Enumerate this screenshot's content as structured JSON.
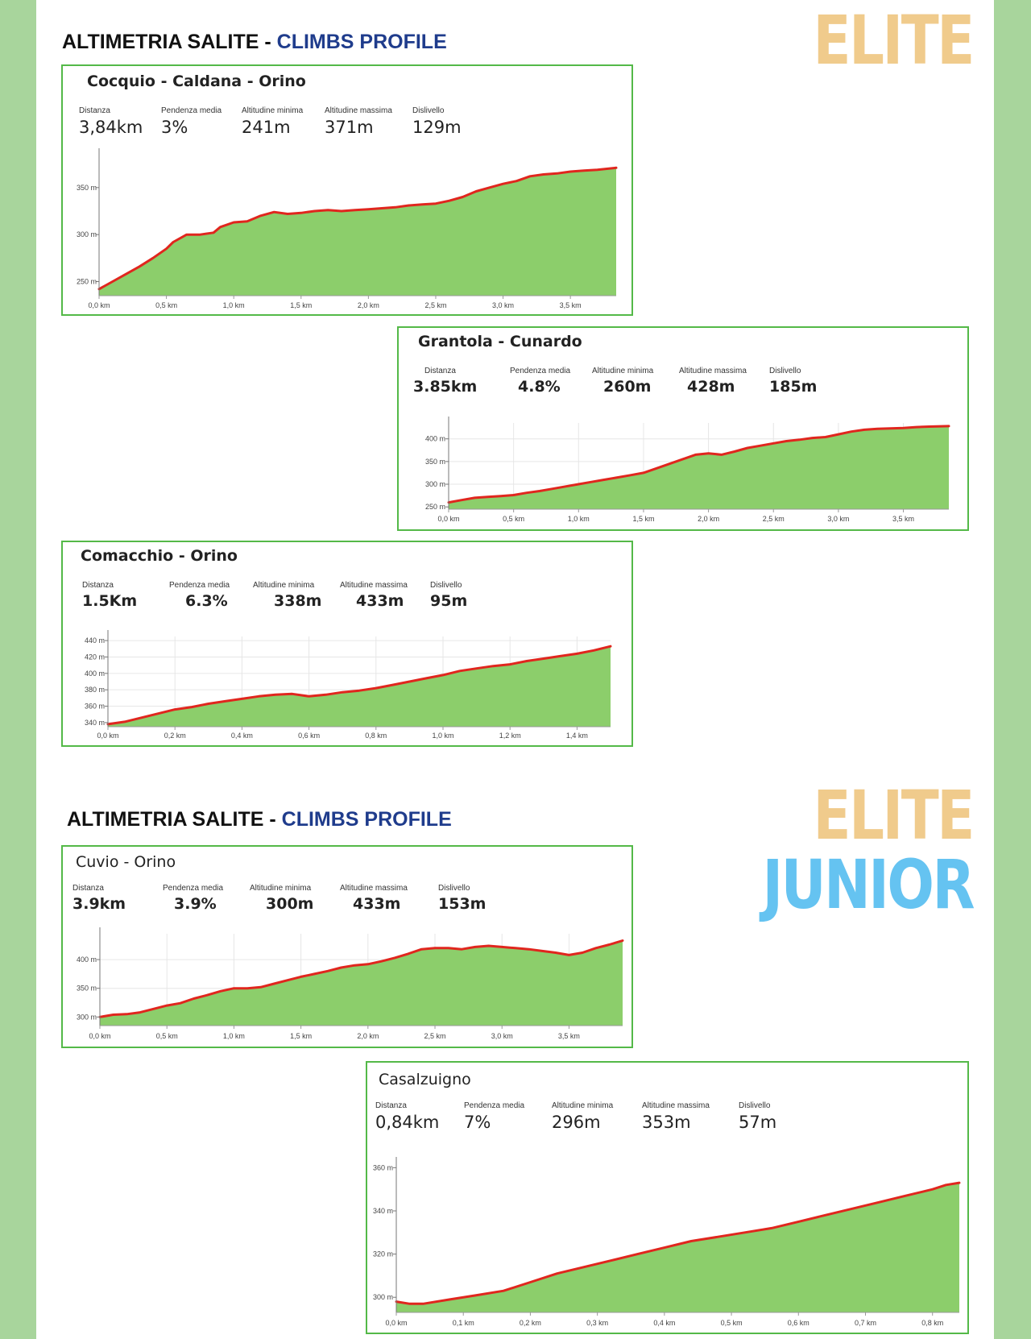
{
  "page": {
    "sections": [
      {
        "heading_main": "ALTIMETRIA SALITE - ",
        "heading_accent": "CLIMBS PROFILE",
        "badges": [
          "ELITE"
        ]
      },
      {
        "heading_main": "ALTIMETRIA SALITE - ",
        "heading_accent": "CLIMBS PROFILE",
        "badges": [
          "ELITE",
          "JUNIOR"
        ]
      }
    ],
    "colors": {
      "panel_border": "#54b948",
      "fill": "#8cce6b",
      "line": "#e0261e",
      "accent_text": "#1f3c8c",
      "elite": "#f0cb8c",
      "junior": "#65c3f1",
      "side_strip": "#a8d59c"
    }
  },
  "chart_data": [
    {
      "type": "area",
      "title": "Cocquio - Caldana - Orino",
      "stats": [
        {
          "label": "Distanza",
          "value": "3,84km"
        },
        {
          "label": "Pendenza media",
          "value": "3%"
        },
        {
          "label": "Altitudine minima",
          "value": "241m"
        },
        {
          "label": "Altitudine massima",
          "value": "371m"
        },
        {
          "label": "Dislivello",
          "value": "129m"
        }
      ],
      "xlim": [
        0,
        3.84
      ],
      "ylim": [
        235,
        385
      ],
      "x_ticks": [
        0,
        0.5,
        1.0,
        1.5,
        2.0,
        2.5,
        3.0,
        3.5
      ],
      "x_tick_labels": [
        "0,0 km",
        "0,5 km",
        "1,0 km",
        "1,5 km",
        "2,0 km",
        "2,5 km",
        "3,0 km",
        "3,5 km"
      ],
      "y_ticks": [
        250,
        300,
        350
      ],
      "y_tick_labels": [
        "250 m",
        "300 m",
        "350 m"
      ],
      "grid": false,
      "x": [
        0,
        0.1,
        0.2,
        0.3,
        0.4,
        0.5,
        0.55,
        0.65,
        0.75,
        0.85,
        0.9,
        1.0,
        1.1,
        1.2,
        1.3,
        1.4,
        1.5,
        1.6,
        1.7,
        1.8,
        1.9,
        2.0,
        2.1,
        2.2,
        2.3,
        2.4,
        2.5,
        2.6,
        2.7,
        2.8,
        2.9,
        3.0,
        3.1,
        3.2,
        3.3,
        3.4,
        3.5,
        3.6,
        3.7,
        3.84
      ],
      "y": [
        242,
        250,
        258,
        266,
        275,
        285,
        292,
        300,
        300,
        302,
        308,
        313,
        314,
        320,
        324,
        322,
        323,
        325,
        326,
        325,
        326,
        327,
        328,
        329,
        331,
        332,
        333,
        336,
        340,
        346,
        350,
        354,
        357,
        362,
        364,
        365,
        367,
        368,
        369,
        371
      ]
    },
    {
      "type": "area",
      "title": "Grantola - Cunardo",
      "stats": [
        {
          "label": "Distanza",
          "value": "3.85km"
        },
        {
          "label": "Pendenza media",
          "value": "4.8%"
        },
        {
          "label": "Altitudine minima",
          "value": "260m"
        },
        {
          "label": "Altitudine massima",
          "value": "428m"
        },
        {
          "label": "Dislivello",
          "value": "185m"
        }
      ],
      "xlim": [
        0,
        3.85
      ],
      "ylim": [
        245,
        435
      ],
      "x_ticks": [
        0,
        0.5,
        1.0,
        1.5,
        2.0,
        2.5,
        3.0,
        3.5
      ],
      "x_tick_labels": [
        "0,0 km",
        "0,5 km",
        "1,0 km",
        "1,5 km",
        "2,0 km",
        "2,5 km",
        "3,0 km",
        "3,5 km"
      ],
      "y_ticks": [
        250,
        300,
        350,
        400
      ],
      "y_tick_labels": [
        "250 m",
        "300 m",
        "350 m",
        "400 m"
      ],
      "grid": true,
      "x": [
        0,
        0.1,
        0.2,
        0.3,
        0.4,
        0.5,
        0.6,
        0.7,
        0.8,
        0.9,
        1.0,
        1.1,
        1.2,
        1.3,
        1.4,
        1.5,
        1.6,
        1.7,
        1.8,
        1.9,
        2.0,
        2.1,
        2.2,
        2.3,
        2.4,
        2.5,
        2.6,
        2.7,
        2.8,
        2.9,
        3.0,
        3.1,
        3.2,
        3.3,
        3.4,
        3.5,
        3.6,
        3.7,
        3.85
      ],
      "y": [
        260,
        265,
        270,
        272,
        274,
        276,
        281,
        285,
        290,
        295,
        300,
        305,
        310,
        315,
        320,
        325,
        335,
        345,
        355,
        365,
        368,
        365,
        372,
        380,
        385,
        390,
        395,
        398,
        402,
        404,
        410,
        416,
        420,
        422,
        423,
        424,
        426,
        427,
        428
      ]
    },
    {
      "type": "area",
      "title": "Comacchio - Orino",
      "stats": [
        {
          "label": "Distanza",
          "value": "1.5Km"
        },
        {
          "label": "Pendenza media",
          "value": "6.3%"
        },
        {
          "label": "Altitudine minima",
          "value": "338m"
        },
        {
          "label": "Altitudine massima",
          "value": "433m"
        },
        {
          "label": "Dislivello",
          "value": "95m"
        }
      ],
      "xlim": [
        0,
        1.5
      ],
      "ylim": [
        335,
        445
      ],
      "x_ticks": [
        0,
        0.2,
        0.4,
        0.6,
        0.8,
        1.0,
        1.2,
        1.4
      ],
      "x_tick_labels": [
        "0,0 km",
        "0,2 km",
        "0,4 km",
        "0,6 km",
        "0,8 km",
        "1,0 km",
        "1,2 km",
        "1,4 km"
      ],
      "y_ticks": [
        340,
        360,
        380,
        400,
        420,
        440
      ],
      "y_tick_labels": [
        "340 m",
        "360 m",
        "380 m",
        "400 m",
        "420 m",
        "440 m"
      ],
      "grid": true,
      "x": [
        0,
        0.05,
        0.1,
        0.15,
        0.2,
        0.25,
        0.3,
        0.35,
        0.4,
        0.45,
        0.5,
        0.55,
        0.6,
        0.65,
        0.7,
        0.75,
        0.8,
        0.85,
        0.9,
        0.95,
        1.0,
        1.05,
        1.1,
        1.15,
        1.2,
        1.25,
        1.3,
        1.35,
        1.4,
        1.45,
        1.5
      ],
      "y": [
        338,
        341,
        346,
        351,
        356,
        359,
        363,
        366,
        369,
        372,
        374,
        375,
        372,
        374,
        377,
        379,
        382,
        386,
        390,
        394,
        398,
        403,
        406,
        409,
        411,
        415,
        418,
        421,
        424,
        428,
        433
      ]
    },
    {
      "type": "area",
      "title": "Cuvio - Orino",
      "stats": [
        {
          "label": "Distanza",
          "value": "3.9km"
        },
        {
          "label": "Pendenza media",
          "value": "3.9%"
        },
        {
          "label": "Altitudine minima",
          "value": "300m"
        },
        {
          "label": "Altitudine massima",
          "value": "433m"
        },
        {
          "label": "Dislivello",
          "value": "153m"
        }
      ],
      "xlim": [
        0,
        3.9
      ],
      "ylim": [
        285,
        445
      ],
      "x_ticks": [
        0,
        0.5,
        1.0,
        1.5,
        2.0,
        2.5,
        3.0,
        3.5
      ],
      "x_tick_labels": [
        "0,0 km",
        "0,5 km",
        "1,0 km",
        "1,5 km",
        "2,0 km",
        "2,5 km",
        "3,0 km",
        "3,5 km"
      ],
      "y_ticks": [
        300,
        350,
        400
      ],
      "y_tick_labels": [
        "300 m",
        "350 m",
        "400 m"
      ],
      "grid": true,
      "x": [
        0,
        0.1,
        0.2,
        0.3,
        0.4,
        0.5,
        0.6,
        0.7,
        0.8,
        0.9,
        1.0,
        1.1,
        1.2,
        1.3,
        1.4,
        1.5,
        1.6,
        1.7,
        1.8,
        1.9,
        2.0,
        2.1,
        2.2,
        2.3,
        2.4,
        2.5,
        2.6,
        2.7,
        2.8,
        2.9,
        3.0,
        3.1,
        3.2,
        3.3,
        3.4,
        3.5,
        3.6,
        3.7,
        3.8,
        3.9
      ],
      "y": [
        300,
        304,
        305,
        308,
        314,
        320,
        324,
        332,
        338,
        345,
        350,
        350,
        352,
        358,
        364,
        370,
        375,
        380,
        386,
        390,
        392,
        397,
        403,
        410,
        418,
        420,
        420,
        418,
        422,
        424,
        422,
        420,
        418,
        415,
        412,
        408,
        412,
        420,
        426,
        433
      ]
    },
    {
      "type": "area",
      "title": "Casalzuigno",
      "stats": [
        {
          "label": "Distanza",
          "value": "0,84km"
        },
        {
          "label": "Pendenza media",
          "value": "7%"
        },
        {
          "label": "Altitudine minima",
          "value": "296m"
        },
        {
          "label": "Altitudine massima",
          "value": "353m"
        },
        {
          "label": "Dislivello",
          "value": "57m"
        }
      ],
      "xlim": [
        0,
        0.84
      ],
      "ylim": [
        293,
        362
      ],
      "x_ticks": [
        0,
        0.1,
        0.2,
        0.3,
        0.4,
        0.5,
        0.6,
        0.7,
        0.8
      ],
      "x_tick_labels": [
        "0,0 km",
        "0,1 km",
        "0,2 km",
        "0,3 km",
        "0,4 km",
        "0,5 km",
        "0,6 km",
        "0,7 km",
        "0,8 km"
      ],
      "y_ticks": [
        300,
        320,
        340,
        360
      ],
      "y_tick_labels": [
        "300 m",
        "320 m",
        "340 m",
        "360 m"
      ],
      "grid": false,
      "x": [
        0,
        0.02,
        0.04,
        0.08,
        0.12,
        0.16,
        0.2,
        0.24,
        0.28,
        0.32,
        0.36,
        0.4,
        0.44,
        0.48,
        0.52,
        0.56,
        0.6,
        0.64,
        0.68,
        0.72,
        0.76,
        0.8,
        0.82,
        0.84
      ],
      "y": [
        298,
        297,
        297,
        299,
        301,
        303,
        307,
        311,
        314,
        317,
        320,
        323,
        326,
        328,
        330,
        332,
        335,
        338,
        341,
        344,
        347,
        350,
        352,
        353
      ]
    }
  ]
}
